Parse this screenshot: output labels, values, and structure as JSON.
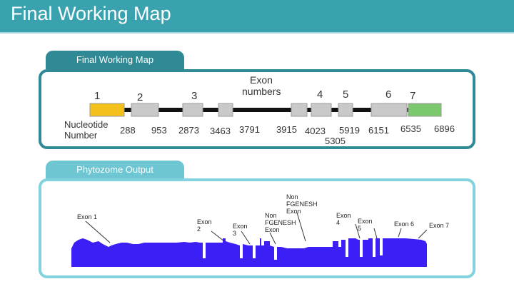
{
  "header": {
    "title": "Final Working Map"
  },
  "tabs": [
    {
      "label": "Final Working Map"
    },
    {
      "label": "Phytozome Output"
    }
  ],
  "map": {
    "heading_line1": "Exon",
    "heading_line2": "numbers",
    "nucleotide_label_line1": "Nucleotide",
    "nucleotide_label_line2": "Number",
    "exon_numbers": [
      "1",
      "2",
      "3",
      "4",
      "5",
      "6",
      "7"
    ],
    "nucleotide_numbers": [
      "288",
      "953",
      "2873",
      "3463",
      "3791",
      "3915",
      "4023",
      "5919",
      "6151",
      "6535",
      "6896",
      "5305"
    ],
    "colors": {
      "exon1": "#f3c01c",
      "exon7": "#7cc86d",
      "exon_box": "#c9c9c9",
      "line": "#111111"
    }
  },
  "phytozome": {
    "labels": {
      "exon1": "Exon 1",
      "exon2_l1": "Exon",
      "exon2_l2": "2",
      "exon3_l1": "Exon",
      "exon3_l2": "3",
      "nonfg1_l1": "Non",
      "nonfg1_l2": "FGENESH",
      "nonfg1_l3": "Exon",
      "nonfg2_l1": "Non",
      "nonfg2_l2": "FGENESH",
      "nonfg2_l3": "Exon",
      "exon4_l1": "Exon",
      "exon4_l2": "4",
      "exon5_l1": "Exon",
      "exon5_l2": "5",
      "exon6": "Exon 6",
      "exon7": "Exon 7"
    },
    "colors": {
      "fill": "#3b1ff5"
    }
  }
}
